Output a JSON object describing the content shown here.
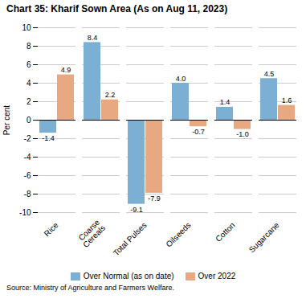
{
  "chart_data": {
    "type": "bar",
    "title": "Chart 35: Kharif Sown Area (As on Aug 11, 2023)",
    "caption": "Source: Ministry of Agriculture and Farmers Welfare.",
    "categories": [
      "Rice",
      "Coarse\nCereals",
      "Total Pulses",
      "Oilseeds",
      "Cotton",
      "Sugarcane"
    ],
    "series": [
      {
        "name": "Over Normal (as on date)",
        "color": "#7bafd4",
        "values": [
          -1.4,
          8.4,
          -9.1,
          4.0,
          1.4,
          4.5
        ],
        "value_labels": [
          "-1.4",
          "8.4",
          "-9.1",
          "4.0",
          "1.4",
          "4.5"
        ]
      },
      {
        "name": "Over 2022",
        "color": "#e8a882",
        "values": [
          4.9,
          2.2,
          -7.9,
          -0.7,
          -1.0,
          1.6
        ],
        "value_labels": [
          "4.9",
          "2.2",
          "-7.9",
          "-0.7",
          "-1.0",
          "1.6"
        ]
      }
    ],
    "ylabel": "Per cent",
    "ylim": [
      -10,
      10
    ],
    "yticks": [
      -10,
      -8,
      -6,
      -4,
      -2,
      0,
      2,
      4,
      6,
      8,
      10
    ],
    "grid": true,
    "data_labels": true,
    "legend": "bottom"
  }
}
